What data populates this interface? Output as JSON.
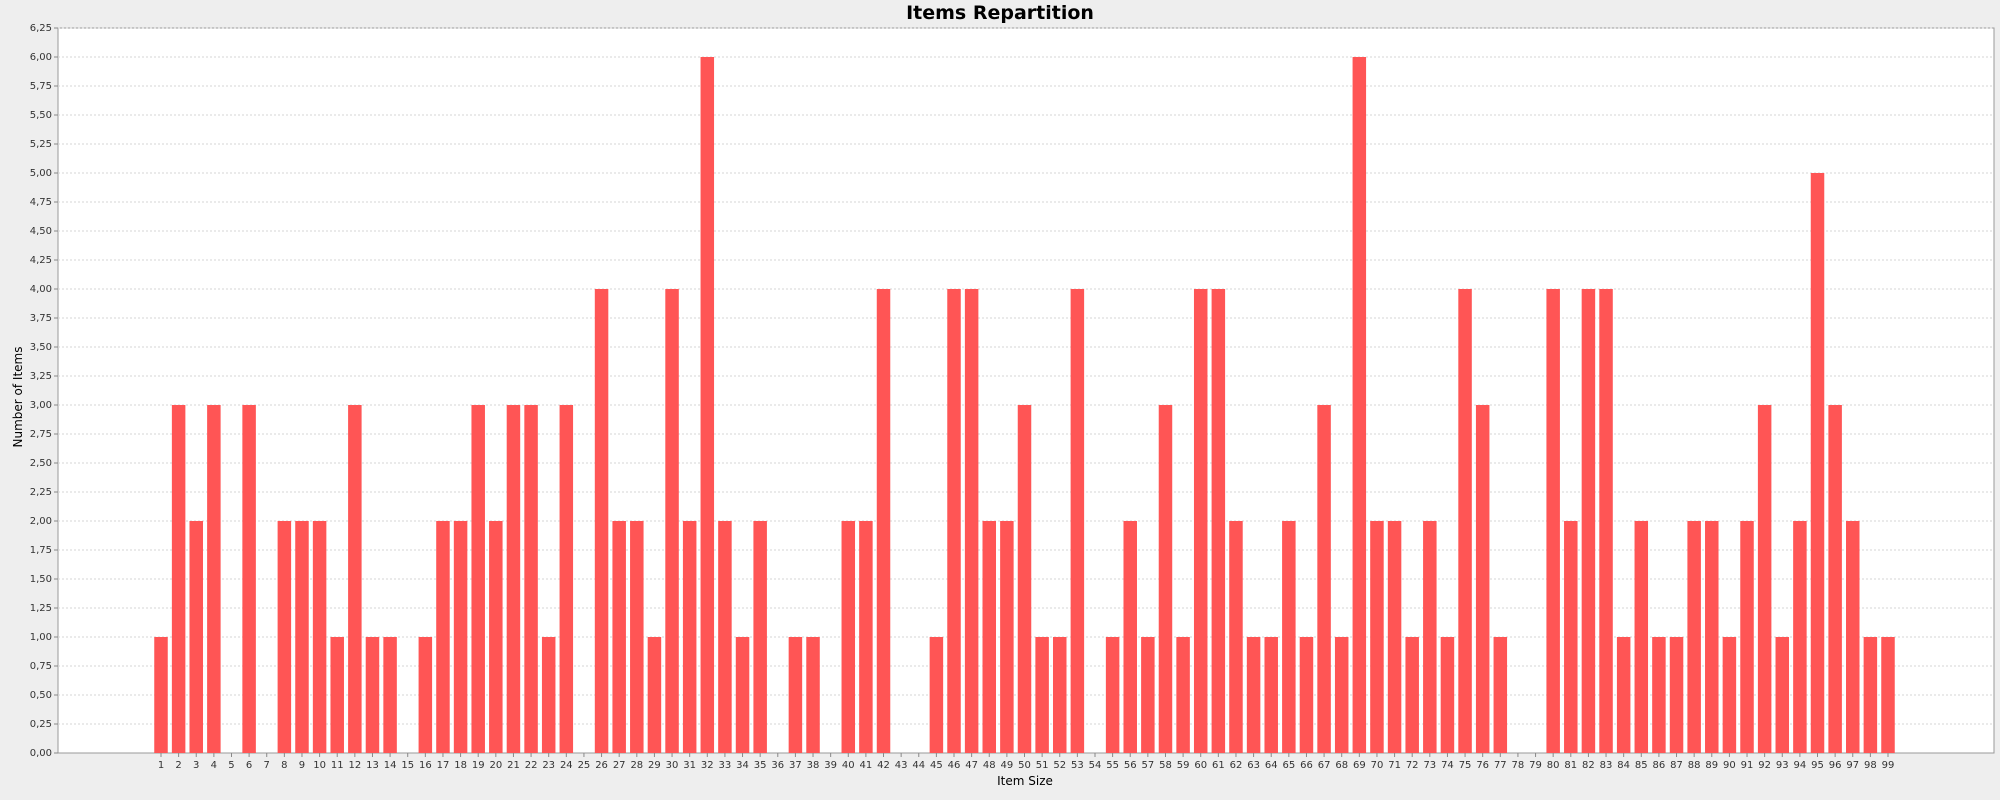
{
  "chart_data": {
    "type": "bar",
    "title": "Items Repartition",
    "xlabel": "Item Size",
    "ylabel": "Number of Items",
    "ylim": [
      0,
      6.25
    ],
    "y_ticks": [
      "0,00",
      "0,25",
      "0,50",
      "0,75",
      "1,00",
      "1,25",
      "1,50",
      "1,75",
      "2,00",
      "2,25",
      "2,50",
      "2,75",
      "3,00",
      "3,25",
      "3,50",
      "3,75",
      "4,00",
      "4,25",
      "4,50",
      "4,75",
      "5,00",
      "5,25",
      "5,50",
      "5,75",
      "6,00",
      "6,25"
    ],
    "grid": true,
    "legend": "none",
    "colors": {
      "bar": "#ff5555",
      "plot_background": "#ffffff",
      "page_background": "#eeeeee",
      "grid": "#d6d6d6"
    },
    "categories": [
      "1",
      "2",
      "3",
      "4",
      "5",
      "6",
      "7",
      "8",
      "9",
      "10",
      "11",
      "12",
      "13",
      "14",
      "15",
      "16",
      "17",
      "18",
      "19",
      "20",
      "21",
      "22",
      "23",
      "24",
      "25",
      "26",
      "27",
      "28",
      "29",
      "30",
      "31",
      "32",
      "33",
      "34",
      "35",
      "36",
      "37",
      "38",
      "39",
      "40",
      "41",
      "42",
      "43",
      "44",
      "45",
      "46",
      "47",
      "48",
      "49",
      "50",
      "51",
      "52",
      "53",
      "54",
      "55",
      "56",
      "57",
      "58",
      "59",
      "60",
      "61",
      "62",
      "63",
      "64",
      "65",
      "66",
      "67",
      "68",
      "69",
      "70",
      "71",
      "72",
      "73",
      "74",
      "75",
      "76",
      "77",
      "78",
      "79",
      "80",
      "81",
      "82",
      "83",
      "84",
      "85",
      "86",
      "87",
      "88",
      "89",
      "90",
      "91",
      "92",
      "93",
      "94",
      "95",
      "96",
      "97",
      "98",
      "99"
    ],
    "values": [
      1,
      3,
      2,
      3,
      0,
      3,
      0,
      2,
      2,
      2,
      1,
      3,
      1,
      1,
      0,
      1,
      2,
      2,
      3,
      2,
      3,
      3,
      1,
      3,
      0,
      4,
      2,
      2,
      1,
      4,
      2,
      6,
      2,
      1,
      2,
      0,
      1,
      1,
      0,
      2,
      2,
      4,
      0,
      0,
      1,
      4,
      4,
      2,
      2,
      3,
      1,
      1,
      4,
      0,
      1,
      2,
      1,
      3,
      1,
      4,
      4,
      2,
      1,
      1,
      2,
      1,
      3,
      1,
      6,
      2,
      2,
      1,
      2,
      1,
      4,
      3,
      1,
      0,
      0,
      4,
      2,
      4,
      4,
      1,
      2,
      1,
      1,
      2,
      2,
      1,
      2,
      3,
      1,
      2,
      5,
      3,
      2,
      1,
      1
    ]
  }
}
